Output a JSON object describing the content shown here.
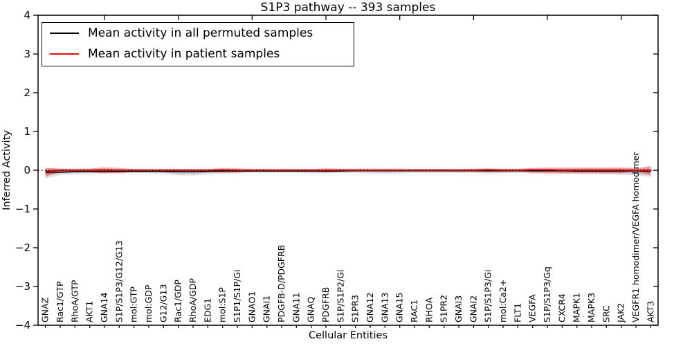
{
  "figure": {
    "title": "S1P3 pathway -- 393 samples",
    "xlabel": "Cellular Entities",
    "ylabel": "Inferred Activity"
  },
  "legend": {
    "items": [
      {
        "label": "Mean activity in all permuted samples",
        "color": "#000000"
      },
      {
        "label": "Mean activity in patient samples",
        "color": "#ff0000"
      }
    ]
  },
  "chart_data": {
    "type": "line",
    "title": "S1P3 pathway -- 393 samples",
    "xlabel": "Cellular Entities",
    "ylabel": "Inferred Activity",
    "ylim": [
      -4,
      4
    ],
    "yticks": [
      4,
      3,
      2,
      1,
      0,
      -1,
      -2,
      -3,
      -4
    ],
    "x_major_tick_every": 5,
    "grid": false,
    "legend_position": "upper left",
    "categories": [
      "GNAZ",
      "Rac1/GTP",
      "RhoA/GTP",
      "AKT1",
      "GNA14",
      "S1P/S1P3/G12/G13",
      "mol:GTP",
      "mol:GDP",
      "G12/G13",
      "Rac1/GDP",
      "RhoA/GDP",
      "EDG1",
      "mol:S1P",
      "S1P1/S1P/Gi",
      "GNAO1",
      "GNAI1",
      "PDGFB-D/PDGFRB",
      "GNA11",
      "GNAQ",
      "PDGFRB",
      "S1P/S1P2/Gi",
      "S1PR3",
      "GNA12",
      "GNA13",
      "GNA15",
      "RAC1",
      "RHOA",
      "S1PR2",
      "GNAI3",
      "GNAI2",
      "S1P/S1P3/Gi",
      "mol:Ca2+",
      "FLT1",
      "VEGFA",
      "S1P/S1P3/Gq",
      "CXCR4",
      "MAPK1",
      "MAPK3",
      "SRC",
      "JAK2",
      "VEGFR1 homodimer/VEGFA homodimer",
      "AKT3"
    ],
    "series": [
      {
        "name": "Mean activity in all permuted samples",
        "color": "#000000",
        "line_style": "solid",
        "values": [
          -0.05,
          -0.05,
          -0.04,
          -0.04,
          -0.03,
          -0.03,
          -0.03,
          -0.03,
          -0.03,
          -0.04,
          -0.04,
          -0.03,
          -0.02,
          -0.02,
          -0.02,
          -0.02,
          -0.02,
          -0.02,
          -0.02,
          -0.02,
          -0.02,
          -0.01,
          -0.01,
          -0.01,
          -0.01,
          -0.01,
          -0.01,
          -0.01,
          -0.01,
          -0.01,
          -0.01,
          -0.01,
          -0.01,
          -0.01,
          -0.01,
          -0.01,
          -0.02,
          -0.02,
          -0.02,
          -0.02,
          -0.01,
          -0.03
        ]
      },
      {
        "name": "Mean activity in patient samples",
        "color": "#ff0000",
        "line_style": "solid",
        "values": [
          -0.02,
          0,
          0,
          0,
          0.01,
          0,
          0,
          0,
          0,
          0,
          0,
          0,
          0.01,
          0,
          0,
          0,
          0,
          0,
          0,
          0,
          0,
          0,
          0,
          0,
          0,
          0,
          0,
          0,
          0,
          0,
          0.01,
          0,
          0,
          0.01,
          0.01,
          0,
          0,
          0,
          0,
          0,
          0,
          -0.01
        ]
      }
    ],
    "bands": [
      {
        "name": "permuted samples range",
        "color": "#000000",
        "opacity": 0.13,
        "upper": [
          0.06,
          0.05,
          0.05,
          0.05,
          0.05,
          0.04,
          0.04,
          0.04,
          0.04,
          0.04,
          0.04,
          0.04,
          0.04,
          0.04,
          0.04,
          0.04,
          0.04,
          0.04,
          0.04,
          0.04,
          0.04,
          0.05,
          0.05,
          0.05,
          0.05,
          0.04,
          0.04,
          0.04,
          0.04,
          0.04,
          0.04,
          0.04,
          0.04,
          0.05,
          0.05,
          0.05,
          0.05,
          0.06,
          0.06,
          0.07,
          0.07,
          0.09
        ],
        "lower": [
          -0.21,
          -0.12,
          -0.1,
          -0.09,
          -0.08,
          -0.09,
          -0.08,
          -0.08,
          -0.09,
          -0.13,
          -0.14,
          -0.1,
          -0.08,
          -0.08,
          -0.07,
          -0.07,
          -0.07,
          -0.07,
          -0.08,
          -0.08,
          -0.07,
          -0.07,
          -0.08,
          -0.09,
          -0.08,
          -0.07,
          -0.07,
          -0.07,
          -0.07,
          -0.07,
          -0.08,
          -0.08,
          -0.07,
          -0.08,
          -0.08,
          -0.09,
          -0.09,
          -0.1,
          -0.11,
          -0.12,
          -0.13,
          -0.17
        ]
      },
      {
        "name": "patient samples range",
        "color": "#ff0000",
        "opacity": 0.28,
        "upper": [
          0.06,
          0.04,
          0.03,
          0.04,
          0.08,
          0.06,
          0.03,
          0.03,
          0.03,
          0.03,
          0.03,
          0.03,
          0.06,
          0.05,
          0.03,
          0.03,
          0.03,
          0.03,
          0.03,
          0.05,
          0.04,
          0.03,
          0.03,
          0.03,
          0.03,
          0.03,
          0.03,
          0.03,
          0.03,
          0.04,
          0.05,
          0.04,
          0.04,
          0.06,
          0.07,
          0.07,
          0.07,
          0.07,
          0.07,
          0.07,
          0.04,
          0.11
        ],
        "lower": [
          -0.16,
          -0.05,
          -0.04,
          -0.05,
          -0.09,
          -0.07,
          -0.03,
          -0.03,
          -0.03,
          -0.03,
          -0.03,
          -0.04,
          -0.07,
          -0.06,
          -0.03,
          -0.03,
          -0.03,
          -0.03,
          -0.04,
          -0.06,
          -0.04,
          -0.03,
          -0.03,
          -0.03,
          -0.03,
          -0.03,
          -0.03,
          -0.03,
          -0.04,
          -0.04,
          -0.06,
          -0.05,
          -0.04,
          -0.07,
          -0.08,
          -0.08,
          -0.08,
          -0.08,
          -0.08,
          -0.08,
          -0.04,
          -0.14
        ]
      }
    ],
    "reference_line": {
      "y": 0,
      "color": "#000000",
      "line_style": "dotted"
    }
  }
}
